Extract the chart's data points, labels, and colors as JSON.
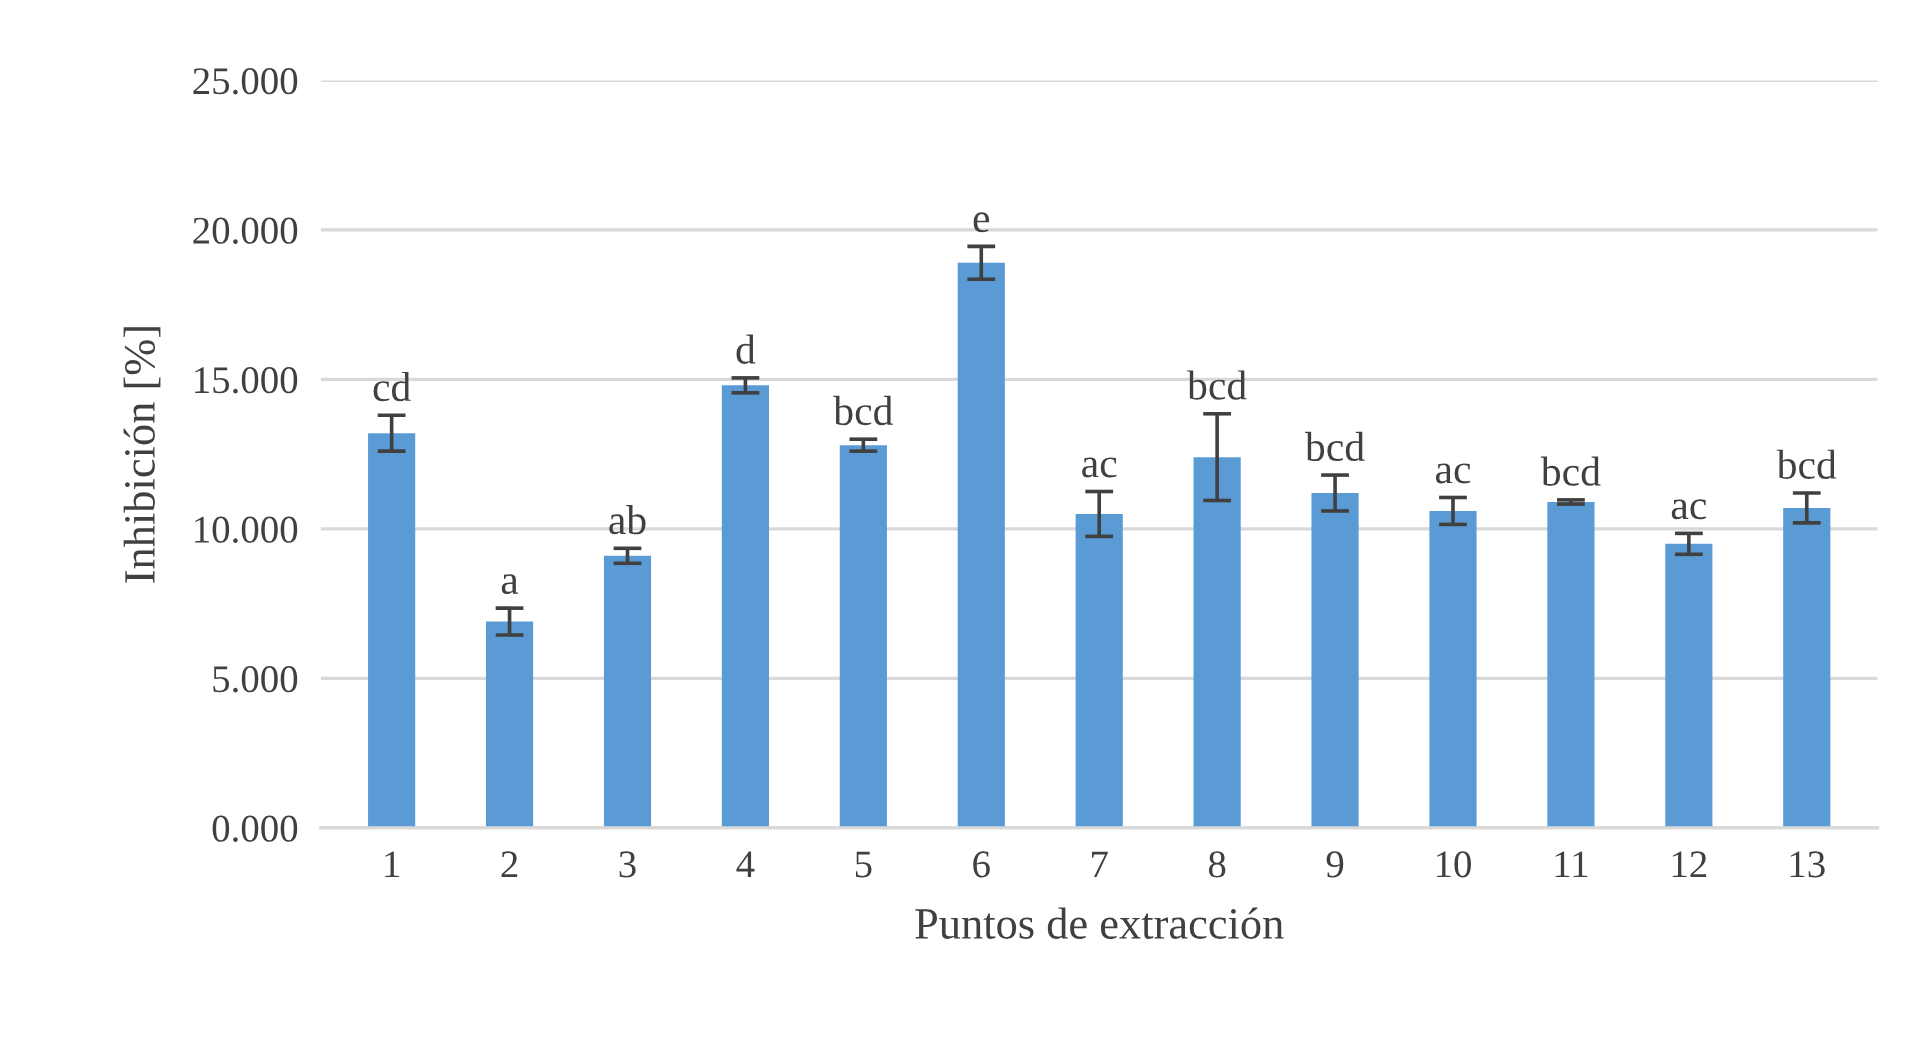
{
  "chart_data": {
    "type": "bar",
    "xlabel": "Puntos de extracción",
    "ylabel": "Inhibición [%]",
    "categories": [
      "1",
      "2",
      "3",
      "4",
      "5",
      "6",
      "7",
      "8",
      "9",
      "10",
      "11",
      "12",
      "13"
    ],
    "values": [
      13.2,
      6.9,
      9.1,
      14.8,
      12.8,
      18.9,
      10.5,
      12.4,
      11.2,
      10.6,
      10.9,
      9.5,
      10.7
    ],
    "errors": [
      0.6,
      0.45,
      0.25,
      0.25,
      0.2,
      0.55,
      0.75,
      1.45,
      0.6,
      0.45,
      0.07,
      0.35,
      0.5
    ],
    "color": "#5b9bd5",
    "ylim": [
      0,
      25
    ],
    "yticks": [
      {
        "value": 0,
        "label": "0.000"
      },
      {
        "value": 5,
        "label": "5.000"
      },
      {
        "value": 10,
        "label": "10.000"
      },
      {
        "value": 15,
        "label": "15.000"
      },
      {
        "value": 20,
        "label": "20.000"
      },
      {
        "value": 25,
        "label": "25.000"
      }
    ],
    "grid": "y",
    "annotations": [
      {
        "text": "cd",
        "x": "1",
        "y": 13.8
      },
      {
        "text": "a",
        "x": "2",
        "y": 7.35
      },
      {
        "text": "ab",
        "x": "3",
        "y": 9.35
      },
      {
        "text": "d",
        "x": "4",
        "y": 15.05
      },
      {
        "text": "bcd",
        "x": "5",
        "y": 13.0
      },
      {
        "text": "e",
        "x": "6",
        "y": 19.45
      },
      {
        "text": "ac",
        "x": "7",
        "y": 11.25
      },
      {
        "text": "bcd",
        "x": "8",
        "y": 13.85
      },
      {
        "text": "bcd",
        "x": "9",
        "y": 11.8
      },
      {
        "text": "ac",
        "x": "10",
        "y": 11.05
      },
      {
        "text": "bcd",
        "x": "11",
        "y": 10.97
      },
      {
        "text": "ac",
        "x": "12",
        "y": 9.85
      },
      {
        "text": "bcd",
        "x": "13",
        "y": 11.2
      }
    ]
  }
}
